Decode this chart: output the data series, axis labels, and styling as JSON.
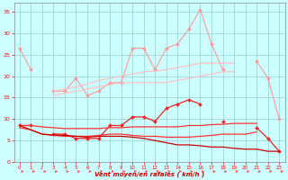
{
  "x": [
    0,
    1,
    2,
    3,
    4,
    5,
    6,
    7,
    8,
    9,
    10,
    11,
    12,
    13,
    14,
    15,
    16,
    17,
    18,
    19,
    20,
    21,
    22,
    23
  ],
  "series": [
    {
      "name": "line1_lightpink_jagged",
      "color": "#FF9999",
      "lw": 0.8,
      "marker": "D",
      "ms": 2.0,
      "y": [
        26.5,
        21.5,
        null,
        16.5,
        16.5,
        19.5,
        15.5,
        16.5,
        18.5,
        18.5,
        26.5,
        26.5,
        21.5,
        26.5,
        27.5,
        31.0,
        35.5,
        27.5,
        21.5,
        null,
        null,
        23.5,
        19.5,
        10.0
      ]
    },
    {
      "name": "line2_pink_upper_band",
      "color": "#FFBBBB",
      "lw": 0.8,
      "marker": null,
      "ms": 0,
      "y": [
        null,
        null,
        null,
        16.5,
        17.0,
        17.5,
        18.2,
        19.0,
        19.5,
        20.0,
        20.5,
        21.0,
        21.2,
        21.5,
        22.0,
        22.5,
        23.0,
        23.0,
        23.0,
        23.0,
        null,
        null,
        null,
        null
      ]
    },
    {
      "name": "line3_pink_lower_band",
      "color": "#FFBBBB",
      "lw": 0.8,
      "marker": null,
      "ms": 0,
      "y": [
        null,
        null,
        null,
        15.5,
        16.0,
        16.5,
        17.0,
        17.5,
        18.0,
        18.5,
        18.5,
        18.5,
        18.5,
        18.5,
        19.0,
        19.5,
        20.0,
        20.5,
        21.0,
        21.0,
        null,
        null,
        null,
        null
      ]
    },
    {
      "name": "line4_pink_flat_upper",
      "color": "#FFAAAA",
      "lw": 0.9,
      "marker": null,
      "ms": 0,
      "y": [
        null,
        null,
        null,
        null,
        null,
        null,
        null,
        null,
        null,
        null,
        null,
        null,
        null,
        null,
        null,
        null,
        null,
        null,
        null,
        null,
        null,
        null,
        null,
        null
      ]
    },
    {
      "name": "line5_red_jagged",
      "color": "#EE2222",
      "lw": 0.9,
      "marker": "D",
      "ms": 2.0,
      "y": [
        8.5,
        8.5,
        null,
        6.5,
        6.5,
        5.5,
        5.5,
        5.5,
        8.5,
        8.5,
        10.5,
        10.5,
        9.5,
        12.5,
        13.5,
        14.5,
        13.5,
        null,
        9.5,
        null,
        null,
        8.0,
        5.5,
        2.5
      ]
    },
    {
      "name": "line6_red_upper_flat",
      "color": "#FF3333",
      "lw": 0.9,
      "marker": null,
      "ms": 0,
      "y": [
        8.5,
        8.5,
        8.2,
        8.0,
        7.8,
        7.8,
        7.8,
        7.8,
        8.0,
        8.0,
        8.2,
        8.2,
        8.2,
        8.2,
        8.2,
        8.5,
        8.5,
        8.7,
        8.8,
        9.0,
        9.0,
        9.0,
        null,
        null
      ]
    },
    {
      "name": "line7_red_mid_flat",
      "color": "#FF3333",
      "lw": 0.9,
      "marker": null,
      "ms": 0,
      "y": [
        8.0,
        7.5,
        6.5,
        6.2,
        6.0,
        6.0,
        6.0,
        6.2,
        6.5,
        6.5,
        6.2,
        6.0,
        6.0,
        5.8,
        5.8,
        5.8,
        6.0,
        6.2,
        6.5,
        6.5,
        6.5,
        7.0,
        null,
        null
      ]
    },
    {
      "name": "line8_darkred_declining",
      "color": "#CC0000",
      "lw": 0.9,
      "marker": null,
      "ms": 0,
      "y": [
        8.5,
        7.5,
        6.5,
        6.3,
        6.2,
        6.0,
        5.8,
        6.0,
        6.0,
        6.0,
        5.8,
        5.5,
        5.0,
        4.5,
        4.0,
        4.0,
        3.8,
        3.5,
        3.5,
        3.2,
        3.0,
        3.0,
        2.5,
        2.5
      ]
    }
  ],
  "xlim": [
    -0.5,
    23.5
  ],
  "ylim": [
    0,
    37
  ],
  "yticks": [
    0,
    5,
    10,
    15,
    20,
    25,
    30,
    35
  ],
  "xticks": [
    0,
    1,
    2,
    3,
    4,
    5,
    6,
    7,
    8,
    9,
    10,
    11,
    12,
    13,
    14,
    15,
    16,
    17,
    18,
    19,
    20,
    21,
    22,
    23
  ],
  "xlabel": "Vent moyen/en rafales ( km/h )",
  "bg_color": "#CCFFFF",
  "grid_color": "#99CCCC",
  "tick_color": "#FF0000",
  "label_color": "#CC0000",
  "arrow_color": "#FF3333",
  "spine_color": "#888888"
}
